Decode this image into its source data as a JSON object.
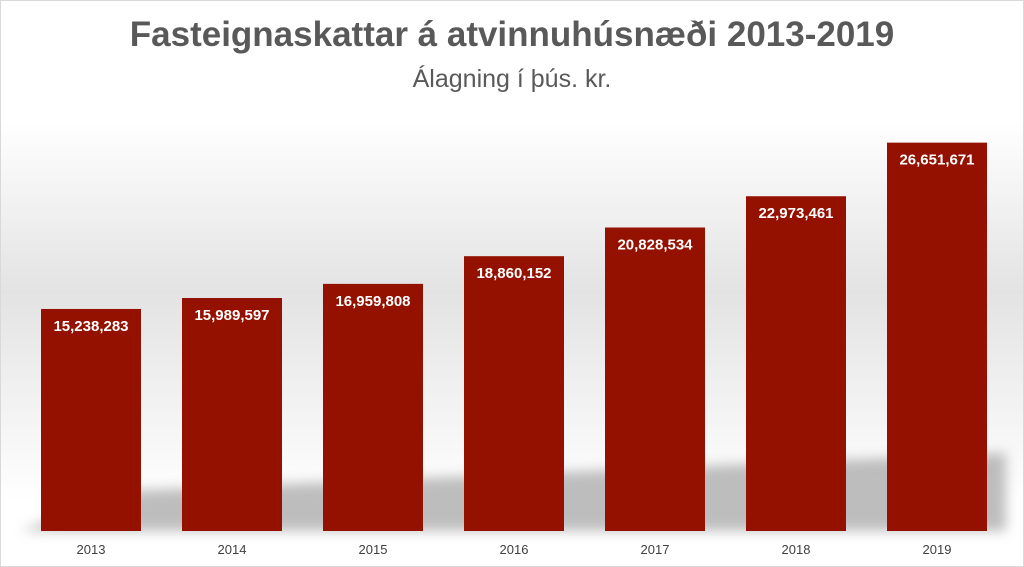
{
  "chart_data": {
    "type": "bar",
    "title": "Fasteignaskattar á atvinnuhúsnæði 2013-2019",
    "subtitle": "Álagning í þús. kr.",
    "xlabel": "",
    "ylabel": "",
    "categories": [
      "2013",
      "2014",
      "2015",
      "2016",
      "2017",
      "2018",
      "2019"
    ],
    "values": [
      15238283,
      15989597,
      16959808,
      18860152,
      20828534,
      22973461,
      26651671
    ],
    "value_labels": [
      "15,238,283",
      "15,989,597",
      "16,959,808",
      "18,860,152",
      "20,828,534",
      "22,973,461",
      "26,651,671"
    ],
    "ylim": [
      0,
      35000000
    ],
    "grid": false,
    "legend": "none",
    "bar_color": "#941100",
    "label_color": "#ffffff",
    "text_color": "#595959"
  }
}
